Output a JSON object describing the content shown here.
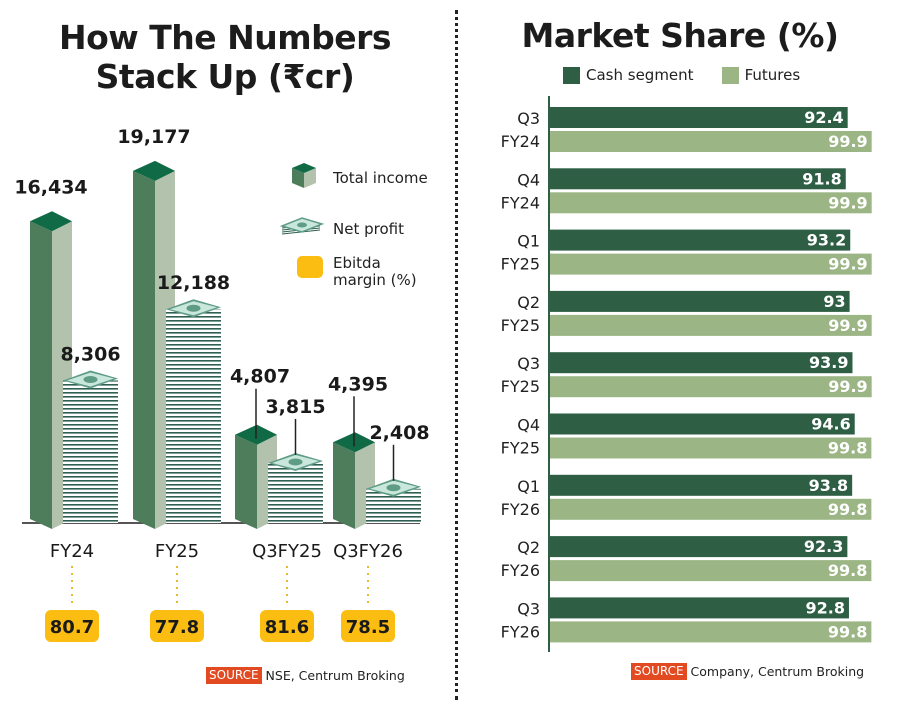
{
  "left_title": "How The Numbers Stack Up (₹cr)",
  "left_title_lines": [
    "How The Numbers",
    "Stack Up (₹cr)"
  ],
  "right_title": "Market Share (%)",
  "colors": {
    "bar_dark_front": "#4e7d5c",
    "bar_side": "#b3c2ad",
    "bar_top": "#0f6a45",
    "money_edge": "#5f9c86",
    "money_face": "#c9e7dc",
    "ebitda": "#fbbd12",
    "dotted": "#e8b830",
    "cash": "#2e5e44",
    "futures": "#9cb585",
    "source_tag": "#e24a22"
  },
  "chart_data": [
    {
      "type": "bar",
      "title": "How The Numbers Stack Up (₹cr)",
      "categories": [
        "FY24",
        "FY25",
        "Q3FY25",
        "Q3FY26"
      ],
      "series": [
        {
          "name": "Total income",
          "values": [
            16434,
            19177,
            4807,
            4395
          ],
          "labels": [
            "16,434",
            "19,177",
            "4,807",
            "4,395"
          ]
        },
        {
          "name": "Net profit",
          "values": [
            8306,
            12188,
            3815,
            2408
          ],
          "labels": [
            "8,306",
            "12,188",
            "3,815",
            "2,408"
          ]
        },
        {
          "name": "Ebitda margin (%)",
          "values": [
            80.7,
            77.8,
            81.6,
            78.5
          ],
          "labels": [
            "80.7",
            "77.8",
            "81.6",
            "78.5"
          ]
        }
      ],
      "legend": [
        "Total income",
        "Net profit",
        "Ebitda margin (%)"
      ],
      "legend_placement": "right",
      "xlabel": "",
      "ylabel": "",
      "ylim": [
        0,
        20000
      ],
      "grid": false,
      "source_label": "SOURCE",
      "source_text": "NSE, Centrum Broking"
    },
    {
      "type": "bar",
      "orientation": "horizontal",
      "title": "Market Share (%)",
      "categories": [
        [
          "Q3",
          "FY24"
        ],
        [
          "Q4",
          "FY24"
        ],
        [
          "Q1",
          "FY25"
        ],
        [
          "Q2",
          "FY25"
        ],
        [
          "Q3",
          "FY25"
        ],
        [
          "Q4",
          "FY25"
        ],
        [
          "Q1",
          "FY26"
        ],
        [
          "Q2",
          "FY26"
        ],
        [
          "Q3",
          "FY26"
        ]
      ],
      "series": [
        {
          "name": "Cash segment",
          "values": [
            92.4,
            91.8,
            93.2,
            93,
            93.9,
            94.6,
            93.8,
            92.3,
            92.8
          ]
        },
        {
          "name": "Futures",
          "values": [
            99.9,
            99.9,
            99.9,
            99.9,
            99.9,
            99.8,
            99.8,
            99.8,
            99.8
          ]
        }
      ],
      "legend": [
        "Cash segment",
        "Futures"
      ],
      "legend_placement": "top",
      "xlim": [
        0,
        100
      ],
      "grid": false,
      "source_label": "SOURCE",
      "source_text": "Company, Centrum Broking"
    }
  ]
}
